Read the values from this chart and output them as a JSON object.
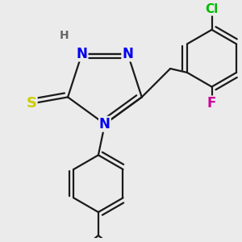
{
  "background_color": "#ebebeb",
  "bond_color": "#1a1a1a",
  "bond_lw": 1.6,
  "atom_colors": {
    "S": "#cccc00",
    "N": "#0000ee",
    "Cl": "#00bb00",
    "F": "#cc0099",
    "H": "#666666",
    "C": "#1a1a1a"
  },
  "fig_size": [
    3.0,
    3.0
  ],
  "dpi": 100
}
